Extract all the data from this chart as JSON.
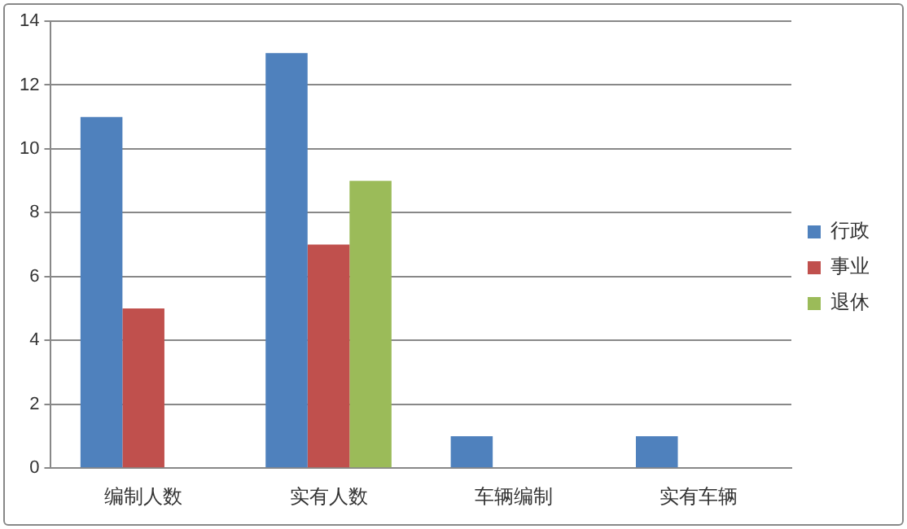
{
  "chart_data": {
    "type": "bar",
    "categories": [
      "编制人数",
      "实有人数",
      "车辆编制",
      "实有车辆"
    ],
    "series": [
      {
        "name": "行政",
        "color": "#4f81bd",
        "values": [
          11,
          13,
          1,
          1
        ]
      },
      {
        "name": "事业",
        "color": "#c0504d",
        "values": [
          5,
          7,
          0,
          0
        ]
      },
      {
        "name": "退休",
        "color": "#9bbb59",
        "values": [
          0,
          9,
          0,
          0
        ]
      }
    ],
    "ylim": [
      0,
      14
    ],
    "yticks": [
      0,
      2,
      4,
      6,
      8,
      10,
      12,
      14
    ],
    "grid": "y",
    "legend": "right"
  }
}
